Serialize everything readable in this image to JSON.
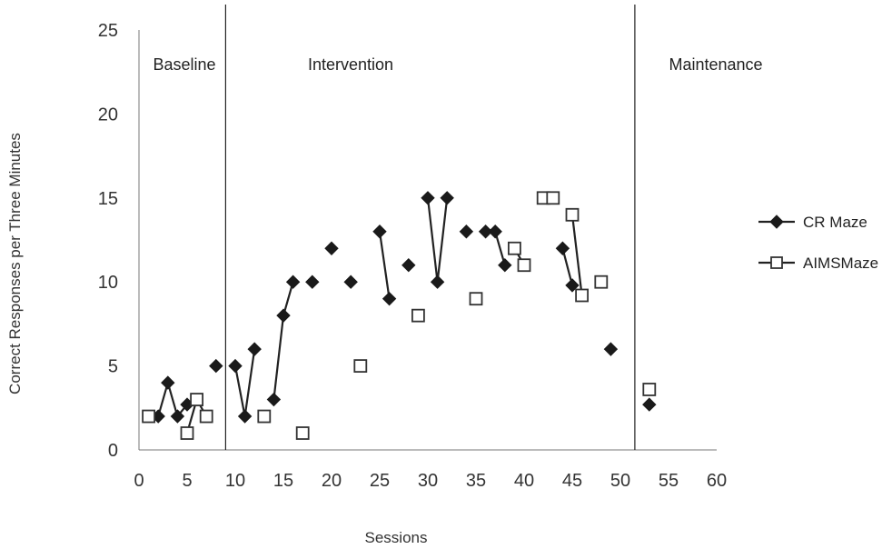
{
  "chart_data": {
    "type": "scatter",
    "xlabel": "Sessions",
    "ylabel": "Correct Responses per Three Minutes",
    "xlim": [
      0,
      60
    ],
    "ylim": [
      0,
      25
    ],
    "xticks": [
      0,
      5,
      10,
      15,
      20,
      25,
      30,
      35,
      40,
      45,
      50,
      55,
      60
    ],
    "yticks": [
      0,
      5,
      10,
      15,
      20,
      25
    ],
    "grid": false,
    "legend_position": "right",
    "phases": [
      {
        "label": "Baseline",
        "start": 0,
        "end": 9
      },
      {
        "label": "Intervention",
        "start": 9,
        "end": 51.5
      },
      {
        "label": "Maintenance",
        "start": 51.5,
        "end": 60
      }
    ],
    "phase_change_lines": [
      9,
      51.5
    ],
    "series": [
      {
        "name": "CR Maze",
        "marker": "diamond-filled",
        "color": "#1a1a1a",
        "points": [
          [
            2,
            2
          ],
          [
            3,
            4
          ],
          [
            4,
            2
          ],
          [
            5,
            2.7
          ],
          [
            8,
            5
          ],
          [
            10,
            5
          ],
          [
            11,
            2
          ],
          [
            12,
            6
          ],
          [
            14,
            3
          ],
          [
            15,
            8
          ],
          [
            16,
            10
          ],
          [
            18,
            10
          ],
          [
            20,
            12
          ],
          [
            22,
            10
          ],
          [
            25,
            13
          ],
          [
            26,
            9
          ],
          [
            28,
            11
          ],
          [
            30,
            15
          ],
          [
            31,
            10
          ],
          [
            32,
            15
          ],
          [
            34,
            13
          ],
          [
            36,
            13
          ],
          [
            37,
            13
          ],
          [
            38,
            11
          ],
          [
            44,
            12
          ],
          [
            45,
            9.8
          ],
          [
            49,
            6
          ],
          [
            53,
            2.7
          ]
        ],
        "segments": [
          [
            [
              2,
              2
            ],
            [
              3,
              4
            ],
            [
              4,
              2
            ],
            [
              5,
              2.7
            ]
          ],
          [
            [
              10,
              5
            ],
            [
              11,
              2
            ],
            [
              12,
              6
            ]
          ],
          [
            [
              14,
              3
            ],
            [
              15,
              8
            ],
            [
              16,
              10
            ]
          ],
          [
            [
              25,
              13
            ],
            [
              26,
              9
            ]
          ],
          [
            [
              30,
              15
            ],
            [
              31,
              10
            ],
            [
              32,
              15
            ]
          ],
          [
            [
              36,
              13
            ],
            [
              37,
              13
            ],
            [
              38,
              11
            ]
          ],
          [
            [
              44,
              12
            ],
            [
              45,
              9.8
            ]
          ]
        ]
      },
      {
        "name": "AIMSMaze",
        "marker": "square-open",
        "color": "#333333",
        "points": [
          [
            1,
            2
          ],
          [
            5,
            1
          ],
          [
            6,
            3
          ],
          [
            7,
            2
          ],
          [
            13,
            2
          ],
          [
            17,
            1
          ],
          [
            23,
            5
          ],
          [
            29,
            8
          ],
          [
            35,
            9
          ],
          [
            39,
            12
          ],
          [
            40,
            11
          ],
          [
            42,
            15
          ],
          [
            43,
            15
          ],
          [
            45,
            14
          ],
          [
            46,
            9.2
          ],
          [
            48,
            10
          ],
          [
            53,
            3.6
          ]
        ],
        "segments": [
          [
            [
              5,
              1
            ],
            [
              6,
              3
            ],
            [
              7,
              2
            ]
          ],
          [
            [
              39,
              12
            ],
            [
              40,
              11
            ]
          ],
          [
            [
              42,
              15
            ],
            [
              43,
              15
            ]
          ],
          [
            [
              45,
              14
            ],
            [
              46,
              9.2
            ]
          ]
        ]
      }
    ]
  }
}
